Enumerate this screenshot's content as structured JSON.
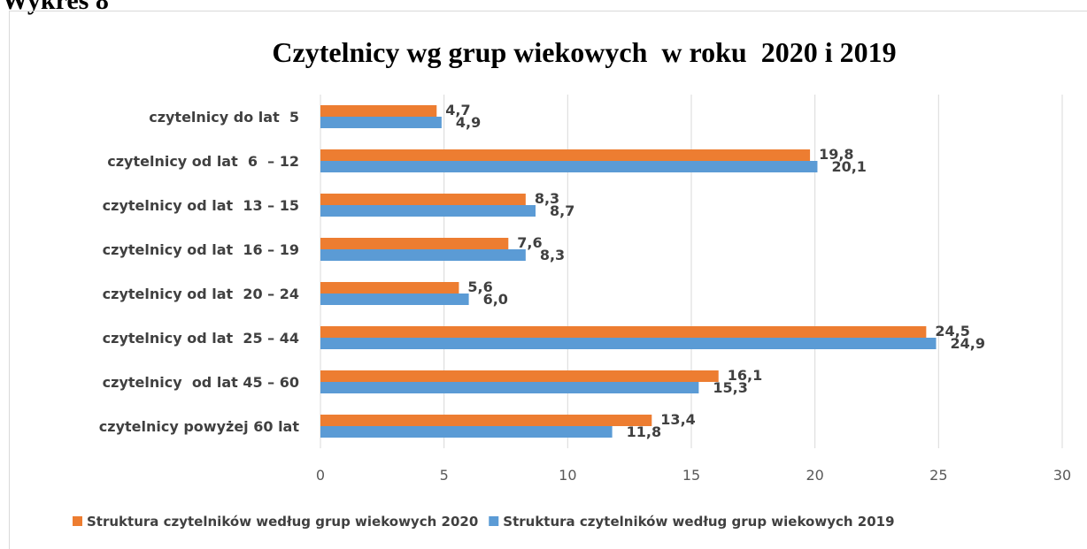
{
  "caption": "Wykres 8",
  "chart_data": {
    "type": "bar",
    "orientation": "horizontal",
    "title": "Czytelnicy wg grup wiekowych  w roku  2020 i 2019",
    "categories": [
      "czytelnicy do lat  5",
      "czytelnicy od lat  6  – 12",
      "czytelnicy od lat  13 – 15",
      "czytelnicy od lat  16 – 19",
      "czytelnicy od lat  20 – 24",
      "czytelnicy od lat  25 – 44",
      "czytelnicy  od lat 45 – 60",
      "czytelnicy powyżej 60 lat"
    ],
    "series": [
      {
        "name": "Struktura czytelników według grup wiekowych 2020",
        "color": "#ED7D31",
        "values": [
          4.7,
          19.8,
          8.3,
          7.6,
          5.6,
          24.5,
          16.1,
          13.4
        ],
        "value_labels": [
          "4,7",
          "19,8",
          "8,3",
          "7,6",
          "5,6",
          "24,5",
          "16,1",
          "13,4"
        ]
      },
      {
        "name": "Struktura czytelników według grup wiekowych 2019",
        "color": "#5B9BD5",
        "values": [
          4.9,
          20.1,
          8.7,
          8.3,
          6.0,
          24.9,
          15.3,
          11.8
        ],
        "value_labels": [
          "4,9",
          "20,1",
          "8,7",
          "8,3",
          "6,0",
          "24,9",
          "15,3",
          "11,8"
        ]
      }
    ],
    "xlim": [
      0,
      30
    ],
    "xticks": [
      0,
      5,
      10,
      15,
      20,
      25,
      30
    ],
    "grid": true,
    "legend": "bottom"
  }
}
